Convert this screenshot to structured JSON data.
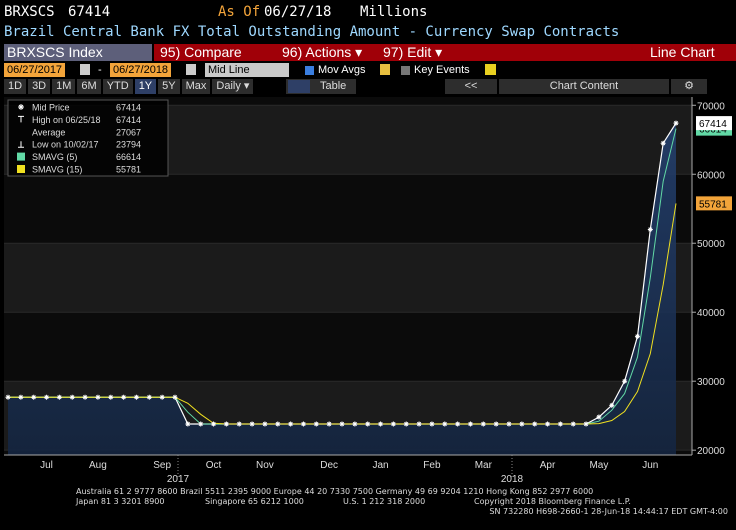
{
  "header": {
    "ticker": "BRXSCS",
    "last": "67414",
    "as_of_label": "As Of",
    "as_of": "06/27/18",
    "units": "Millions",
    "description": "Brazil Central Bank FX Total Outstanding Amount - Currency Swap Contracts"
  },
  "toolbar": {
    "security": "BRXSCS Index",
    "compare": "95) Compare",
    "actions": "96) Actions ▾",
    "edit": "97) Edit ▾",
    "view": "Line Chart"
  },
  "controls": {
    "start": "06/27/2017",
    "separator": "-",
    "end": "06/27/2018",
    "mode": "Mid Line",
    "mov_avgs": "Mov Avgs",
    "key_events": "Key Events"
  },
  "ranges": [
    "1D",
    "3D",
    "1M",
    "6M",
    "YTD",
    "1Y",
    "5Y",
    "Max",
    "Daily ▾"
  ],
  "table": "Table",
  "nav": "<<",
  "chart_content": "Chart Content",
  "chart_data": {
    "type": "line",
    "categories": [
      null,
      null,
      null,
      "Jul",
      null,
      null,
      null,
      "Aug",
      null,
      null,
      null,
      null,
      "Sep",
      null,
      null,
      null,
      "Oct",
      null,
      null,
      null,
      "Nov",
      null,
      null,
      null,
      null,
      "Dec",
      null,
      null,
      null,
      "Jan",
      null,
      null,
      null,
      "Feb",
      null,
      null,
      null,
      "Mar",
      null,
      null,
      null,
      null,
      "Apr",
      null,
      null,
      null,
      "May",
      null,
      null,
      null,
      "Jun",
      null,
      null
    ],
    "year_labels": [
      "2017",
      "2018"
    ],
    "series": [
      {
        "name": "Mid Price",
        "color": "#ffffff",
        "values": [
          27680,
          27680,
          27680,
          27680,
          27680,
          27680,
          27680,
          27680,
          27680,
          27680,
          27680,
          27680,
          27680,
          27680,
          23794,
          23794,
          23794,
          23794,
          23794,
          23794,
          23794,
          23794,
          23794,
          23794,
          23794,
          23794,
          23794,
          23794,
          23794,
          23794,
          23794,
          23794,
          23794,
          23794,
          23794,
          23794,
          23794,
          23794,
          23794,
          23794,
          23794,
          23794,
          23794,
          23794,
          23794,
          23794,
          24800,
          26500,
          30000,
          36500,
          52000,
          64500,
          67414
        ]
      },
      {
        "name": "SMAVG (5)",
        "color": "#62d9a6",
        "values": [
          27680,
          27680,
          27680,
          27680,
          27680,
          27680,
          27680,
          27680,
          27680,
          27680,
          27680,
          27680,
          27680,
          27680,
          25500,
          23794,
          23794,
          23794,
          23794,
          23794,
          23794,
          23794,
          23794,
          23794,
          23794,
          23794,
          23794,
          23794,
          23794,
          23794,
          23794,
          23794,
          23794,
          23794,
          23794,
          23794,
          23794,
          23794,
          23794,
          23794,
          23794,
          23794,
          23794,
          23794,
          23794,
          23794,
          24200,
          25800,
          28200,
          33500,
          45000,
          59000,
          66614
        ]
      },
      {
        "name": "SMAVG (15)",
        "color": "#f0e020",
        "values": [
          27680,
          27680,
          27680,
          27680,
          27680,
          27680,
          27680,
          27680,
          27680,
          27680,
          27680,
          27680,
          27680,
          27680,
          26800,
          25200,
          23900,
          23794,
          23794,
          23794,
          23794,
          23794,
          23794,
          23794,
          23794,
          23794,
          23794,
          23794,
          23794,
          23794,
          23794,
          23794,
          23794,
          23794,
          23794,
          23794,
          23794,
          23794,
          23794,
          23794,
          23794,
          23794,
          23794,
          23794,
          23794,
          23794,
          23850,
          24300,
          25600,
          28500,
          34000,
          44000,
          55781
        ]
      }
    ],
    "stats": [
      {
        "label": "High on 06/25/18",
        "value": 67414
      },
      {
        "label": "Average",
        "value": 27067
      },
      {
        "label": "Low on 10/02/17",
        "value": 23794
      }
    ],
    "ylim": [
      19300,
      71200
    ],
    "yticks": [
      20000,
      30000,
      40000,
      50000,
      60000,
      70000
    ],
    "grid": true
  },
  "footer": [
    "Australia 61 2 9777 8600 Brazil 5511 2395 9000 Europe 44 20 7330 7500 Germany 49 69 9204 1210 Hong Kong 852 2977 6000",
    "Japan 81 3 3201 8900",
    "Singapore 65 6212 1000",
    "U.S. 1 212 318 2000",
    "Copyright 2018 Bloomberg Finance L.P.",
    "SN 732280 H698-2660-1 28-Jun-18 14:44:17 EDT  GMT-4:00"
  ]
}
